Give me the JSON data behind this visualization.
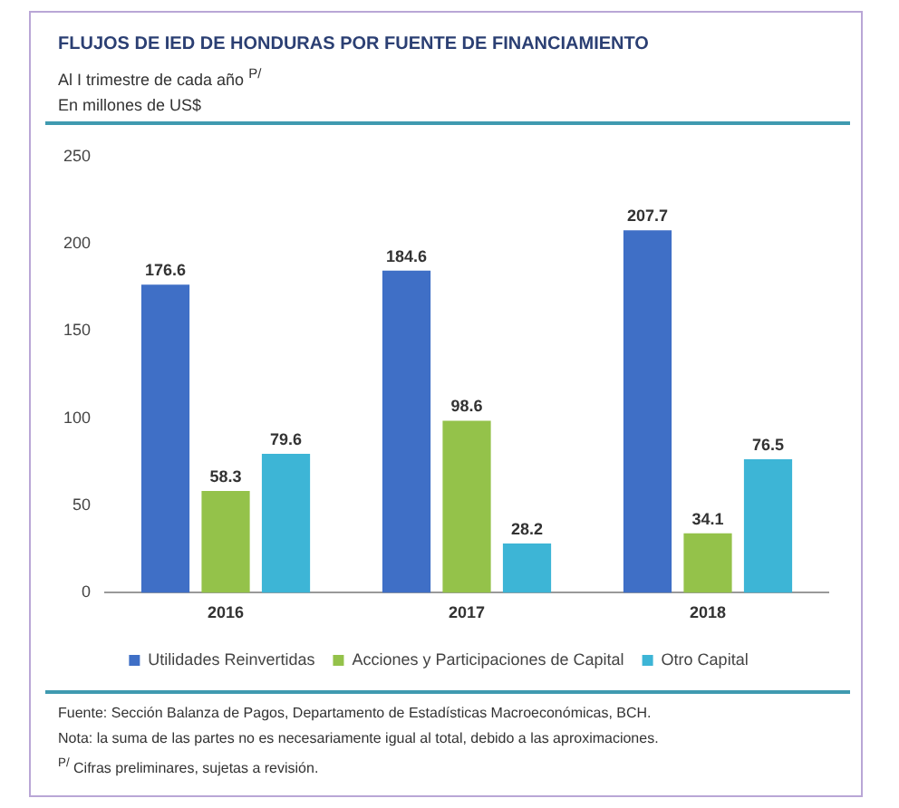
{
  "chart_data": {
    "type": "bar",
    "title": "FLUJOS DE IED DE HONDURAS POR FUENTE DE FINANCIAMIENTO",
    "subtitle": "Al I trimestre de cada año $^{P/}$\nEn millones de US$",
    "categories": [
      "2016",
      "2017",
      "2018"
    ],
    "series": [
      {
        "name": "Utilidades Reinvertidas",
        "color": "#3f6fc6",
        "values": [
          176.6,
          184.6,
          207.7
        ]
      },
      {
        "name": "Acciones y Participaciones de Capital",
        "color": "#94c24a",
        "values": [
          58.3,
          98.6,
          34.1
        ]
      },
      {
        "name": "Otro Capital",
        "color": "#3db5d6",
        "values": [
          79.6,
          28.2,
          76.5
        ]
      }
    ],
    "ylim": [
      0,
      250
    ],
    "yticks": [
      0,
      50,
      100,
      150,
      200,
      250
    ],
    "grid": false,
    "legend": "bottom",
    "data_labels": true,
    "annotations": [
      "Fuente: Sección Balanza de Pagos, Departamento de Estadísticas Macroeconómicas, BCH.",
      "Nota: la suma de las partes no es necesariamente igual al total, debido a las aproximaciones.",
      "$^{P/}$ Cifras preliminares, sujetas a revisión."
    ]
  }
}
